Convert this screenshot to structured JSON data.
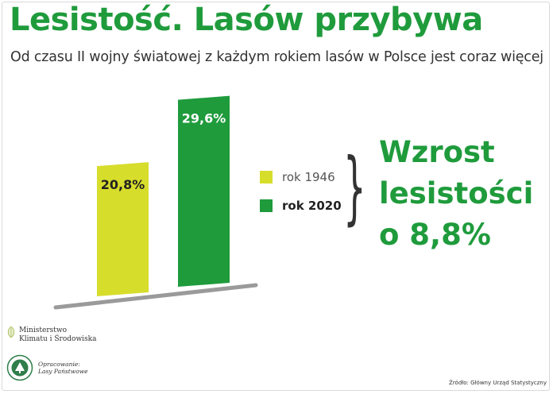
{
  "header": {
    "title": "Lesistość. Lasów przybywa",
    "subtitle": "Od czasu II wojny światowej z każdym rokiem lasów w Polsce jest coraz więcej"
  },
  "chart_data": {
    "type": "bar",
    "categories": [
      "rok 1946",
      "rok 2020"
    ],
    "values": [
      20.8,
      29.6
    ],
    "value_labels": [
      "20,8%",
      "29,6%"
    ],
    "unit": "%",
    "colors": [
      "#d7dd2b",
      "#1f9b3c"
    ],
    "legend": {
      "placement": "right",
      "entries": [
        {
          "label": "rok 1946",
          "color": "#d7dd2b",
          "bold": false
        },
        {
          "label": "rok 2020",
          "color": "#1f9b3c",
          "bold": true
        }
      ]
    },
    "annotation": {
      "lines": [
        "Wzrost",
        "lesistości",
        "o 8,8%"
      ]
    },
    "grid": false
  },
  "footer": {
    "ministry_lines": [
      "Ministerstwo",
      "Klimatu i Środowiska"
    ],
    "lp_lines": [
      "Opracowanie:",
      "Lasy Państwowe"
    ],
    "source": "Źródło: Główny Urząd Statystyczny"
  },
  "colors": {
    "brand_green": "#1f9b3c",
    "yellow_green": "#d7dd2b"
  }
}
